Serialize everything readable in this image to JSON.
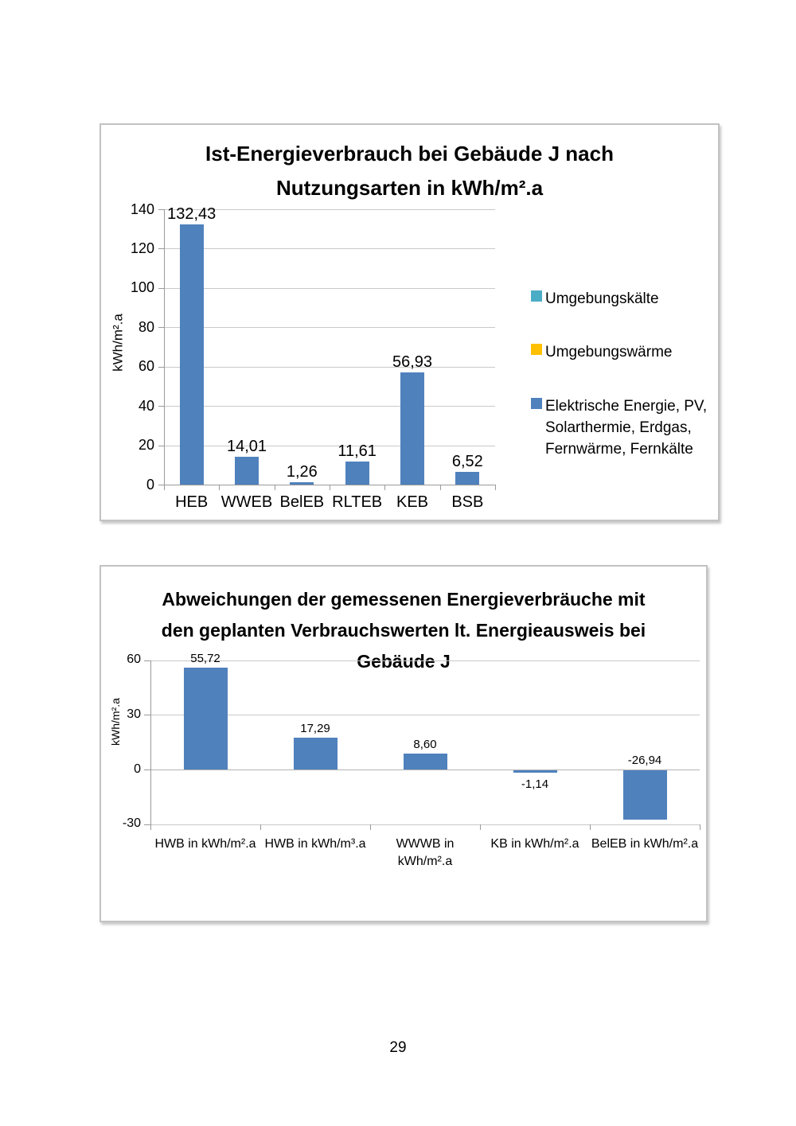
{
  "page": {
    "number": "29"
  },
  "chart_data": [
    {
      "type": "bar",
      "title": "Ist-Energieverbrauch bei Gebäude J nach Nutzungsarten in kWh/m².a",
      "title_lines": [
        "Ist-Energieverbrauch bei Gebäude J nach",
        "Nutzungsarten in kWh/m².a"
      ],
      "xlabel": "",
      "ylabel": "kWh/m².a",
      "ylim": [
        0,
        140
      ],
      "y_ticks": [
        0,
        20,
        40,
        60,
        80,
        100,
        120,
        140
      ],
      "grid": true,
      "legend_position": "right",
      "categories": [
        "HEB",
        "WWEB",
        "BelEB",
        "RLTEB",
        "KEB",
        "BSB"
      ],
      "category_lines": [
        [
          "HEB"
        ],
        [
          "WWEB"
        ],
        [
          "BelEB"
        ],
        [
          "RLTEB"
        ],
        [
          "KEB"
        ],
        [
          "BSB"
        ]
      ],
      "values": [
        132.43,
        14.01,
        1.26,
        11.61,
        56.93,
        6.52
      ],
      "value_labels": [
        "132,43",
        "14,01",
        "1,26",
        "11,61",
        "56,93",
        "6,52"
      ],
      "bar_color": "#4f81bd",
      "legend": [
        {
          "label": "Umgebungskälte",
          "lines": [
            "Umgebungskälte"
          ],
          "color": "#4bacc6"
        },
        {
          "label": "Umgebungswärme",
          "lines": [
            "Umgebungswärme"
          ],
          "color": "#ffc000"
        },
        {
          "label": "Elektrische Energie, PV, Solarthermie, Erdgas, Fernwärme, Fernkälte",
          "lines": [
            "Elektrische Energie, PV,",
            "Solarthermie, Erdgas,",
            "Fernwärme, Fernkälte"
          ],
          "color": "#4f81bd"
        }
      ]
    },
    {
      "type": "bar",
      "title": "Abweichungen der gemessenen Energieverbräuche mit den geplanten Verbrauchswerten lt. Energieausweis bei Gebäude J",
      "title_lines": [
        "Abweichungen der gemessenen Energieverbräuche mit",
        "den geplanten Verbrauchswerten lt. Energieausweis bei",
        "Gebäude J"
      ],
      "xlabel": "",
      "ylabel": "kWh/m².a",
      "ylim": [
        -30,
        60
      ],
      "y_ticks": [
        60,
        30,
        0,
        -30
      ],
      "grid": true,
      "legend_position": "none",
      "categories": [
        "HWB in kWh/m².a",
        "HWB in kWh/m³.a",
        "WWWB in kWh/m².a",
        "KB in kWh/m².a",
        "BelEB in kWh/m².a"
      ],
      "category_lines": [
        [
          "HWB in kWh/m².a"
        ],
        [
          "HWB in kWh/m³.a"
        ],
        [
          "WWWB in",
          "kWh/m².a"
        ],
        [
          "KB in kWh/m².a"
        ],
        [
          "BelEB in kWh/m².a"
        ]
      ],
      "values": [
        55.72,
        17.29,
        8.6,
        -1.14,
        -26.94
      ],
      "value_labels": [
        "55,72",
        "17,29",
        "8,60",
        "-1,14",
        "-26,94"
      ],
      "bar_color": "#4f81bd",
      "legend": []
    }
  ]
}
